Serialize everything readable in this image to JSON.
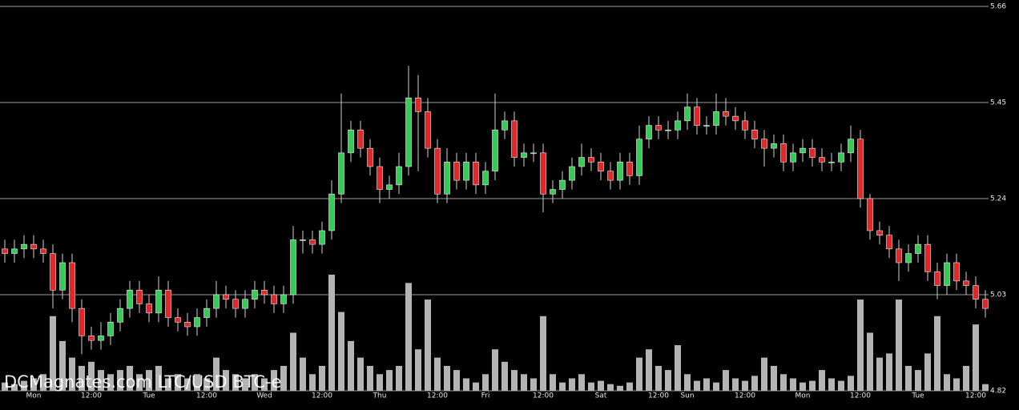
{
  "chart_data": {
    "type": "candlestick",
    "watermark": "DCMagnates.com LTC/USD BTC-e",
    "categories": [
      null,
      null,
      null,
      "Mon",
      null,
      null,
      null,
      null,
      null,
      "12:00",
      null,
      null,
      null,
      null,
      null,
      "Tue",
      null,
      null,
      null,
      null,
      null,
      "12:00",
      null,
      null,
      null,
      null,
      null,
      "Wed",
      null,
      null,
      null,
      null,
      null,
      "12:00",
      null,
      null,
      null,
      null,
      null,
      "Thu",
      null,
      null,
      null,
      null,
      null,
      "12:00",
      null,
      null,
      null,
      null,
      "Fri",
      null,
      null,
      null,
      null,
      null,
      "12:00",
      null,
      null,
      null,
      null,
      null,
      "Sat",
      null,
      null,
      null,
      null,
      null,
      "12:00",
      null,
      null,
      "Sun",
      null,
      null,
      null,
      null,
      null,
      "12:00",
      null,
      null,
      null,
      null,
      null,
      "Mon",
      null,
      null,
      null,
      null,
      null,
      "12:00",
      null,
      null,
      null,
      null,
      null,
      "Tue",
      null,
      null,
      null,
      null,
      null,
      "12:00",
      null
    ],
    "open": [
      5.13,
      5.12,
      5.13,
      5.14,
      5.13,
      5.12,
      5.04,
      5.1,
      5.0,
      4.94,
      4.93,
      4.94,
      4.97,
      5.0,
      5.04,
      5.01,
      4.99,
      5.04,
      4.98,
      4.97,
      4.96,
      4.98,
      5.0,
      5.03,
      5.02,
      5.0,
      5.02,
      5.04,
      5.03,
      5.01,
      5.03,
      5.15,
      5.15,
      5.14,
      5.17,
      5.25,
      5.34,
      5.39,
      5.35,
      5.31,
      5.26,
      5.27,
      5.31,
      5.46,
      5.43,
      5.35,
      5.25,
      5.32,
      5.28,
      5.32,
      5.27,
      5.3,
      5.39,
      5.41,
      5.33,
      5.34,
      5.34,
      5.25,
      5.26,
      5.28,
      5.31,
      5.33,
      5.32,
      5.3,
      5.28,
      5.32,
      5.29,
      5.37,
      5.4,
      5.39,
      5.39,
      5.41,
      5.44,
      5.4,
      5.4,
      5.43,
      5.42,
      5.41,
      5.39,
      5.37,
      5.35,
      5.36,
      5.32,
      5.34,
      5.35,
      5.33,
      5.32,
      5.32,
      5.34,
      5.37,
      5.24,
      5.17,
      5.16,
      5.13,
      5.1,
      5.12,
      5.14,
      5.08,
      5.05,
      5.1,
      5.06,
      5.05,
      5.02
    ],
    "high": [
      5.15,
      5.15,
      5.16,
      5.16,
      5.15,
      5.14,
      5.12,
      5.12,
      5.02,
      4.96,
      4.97,
      4.99,
      5.02,
      5.06,
      5.06,
      5.03,
      5.07,
      5.06,
      5.0,
      4.99,
      5.0,
      5.02,
      5.06,
      5.05,
      5.04,
      5.04,
      5.06,
      5.06,
      5.05,
      5.05,
      5.18,
      5.17,
      5.17,
      5.19,
      5.28,
      5.47,
      5.41,
      5.41,
      5.37,
      5.33,
      5.29,
      5.34,
      5.53,
      5.51,
      5.46,
      5.37,
      5.35,
      5.34,
      5.34,
      5.34,
      5.32,
      5.47,
      5.43,
      5.43,
      5.36,
      5.36,
      5.36,
      5.28,
      5.3,
      5.33,
      5.36,
      5.35,
      5.34,
      5.32,
      5.34,
      5.34,
      5.4,
      5.42,
      5.42,
      5.41,
      5.43,
      5.47,
      5.46,
      5.42,
      5.47,
      5.46,
      5.44,
      5.43,
      5.41,
      5.39,
      5.38,
      5.38,
      5.36,
      5.37,
      5.37,
      5.35,
      5.34,
      5.36,
      5.4,
      5.39,
      5.25,
      5.19,
      5.18,
      5.15,
      5.14,
      5.16,
      5.16,
      5.1,
      5.12,
      5.12,
      5.08,
      5.07,
      5.04
    ],
    "low": [
      5.1,
      5.1,
      5.11,
      5.11,
      5.1,
      5.0,
      5.02,
      4.97,
      4.9,
      4.91,
      4.91,
      4.92,
      4.95,
      4.98,
      4.99,
      4.97,
      4.97,
      4.96,
      4.95,
      4.94,
      4.94,
      4.96,
      4.98,
      5.0,
      4.98,
      4.98,
      5.0,
      5.01,
      4.99,
      4.99,
      5.01,
      5.12,
      5.12,
      5.12,
      5.15,
      5.23,
      5.32,
      5.33,
      5.29,
      5.23,
      5.24,
      5.25,
      5.29,
      5.3,
      5.33,
      5.23,
      5.23,
      5.26,
      5.26,
      5.25,
      5.25,
      5.28,
      5.37,
      5.31,
      5.31,
      5.32,
      5.21,
      5.23,
      5.24,
      5.26,
      5.29,
      5.3,
      5.28,
      5.26,
      5.26,
      5.27,
      5.27,
      5.35,
      5.37,
      5.37,
      5.37,
      5.39,
      5.38,
      5.38,
      5.38,
      5.4,
      5.39,
      5.37,
      5.35,
      5.31,
      5.33,
      5.3,
      5.3,
      5.32,
      5.31,
      5.3,
      5.3,
      5.3,
      5.32,
      5.22,
      5.15,
      5.14,
      5.11,
      5.06,
      5.08,
      5.1,
      5.06,
      5.02,
      5.03,
      5.04,
      5.03,
      5.0,
      4.98
    ],
    "close": [
      5.12,
      5.13,
      5.14,
      5.13,
      5.12,
      5.04,
      5.1,
      5.0,
      4.94,
      4.93,
      4.94,
      4.97,
      5.0,
      5.04,
      5.01,
      4.99,
      5.04,
      4.98,
      4.97,
      4.96,
      4.98,
      5.0,
      5.03,
      5.02,
      5.0,
      5.02,
      5.04,
      5.03,
      5.01,
      5.03,
      5.15,
      5.15,
      5.14,
      5.17,
      5.25,
      5.34,
      5.39,
      5.35,
      5.31,
      5.26,
      5.27,
      5.31,
      5.46,
      5.43,
      5.35,
      5.25,
      5.32,
      5.28,
      5.32,
      5.27,
      5.3,
      5.39,
      5.41,
      5.33,
      5.34,
      5.34,
      5.25,
      5.26,
      5.28,
      5.31,
      5.33,
      5.32,
      5.3,
      5.28,
      5.32,
      5.29,
      5.37,
      5.4,
      5.39,
      5.39,
      5.41,
      5.44,
      5.4,
      5.4,
      5.43,
      5.42,
      5.41,
      5.39,
      5.37,
      5.35,
      5.36,
      5.32,
      5.34,
      5.35,
      5.33,
      5.32,
      5.32,
      5.34,
      5.37,
      5.24,
      5.17,
      5.16,
      5.13,
      5.1,
      5.12,
      5.14,
      5.08,
      5.05,
      5.1,
      5.06,
      5.05,
      5.02,
      5.0
    ],
    "volume": [
      10,
      8,
      12,
      15,
      20,
      90,
      60,
      40,
      30,
      35,
      25,
      20,
      25,
      30,
      20,
      25,
      30,
      15,
      20,
      15,
      20,
      15,
      40,
      25,
      20,
      15,
      20,
      15,
      25,
      30,
      70,
      40,
      20,
      30,
      140,
      95,
      60,
      40,
      30,
      20,
      25,
      30,
      130,
      50,
      110,
      40,
      30,
      25,
      15,
      10,
      20,
      50,
      35,
      25,
      20,
      15,
      90,
      20,
      10,
      15,
      20,
      10,
      12,
      8,
      6,
      10,
      40,
      50,
      30,
      25,
      55,
      20,
      12,
      15,
      10,
      25,
      15,
      12,
      18,
      40,
      30,
      20,
      15,
      10,
      12,
      25,
      15,
      12,
      18,
      110,
      70,
      40,
      45,
      110,
      30,
      25,
      45,
      90,
      20,
      15,
      30,
      80,
      8
    ],
    "up_color": "#33cc55",
    "down_color": "#e02828",
    "wick_color": "#d0d0d0",
    "volume_color": "#b4b4b4",
    "ylim": [
      4.82,
      5.66
    ],
    "yticks": [
      4.82,
      5.03,
      5.24,
      5.45,
      5.66
    ],
    "grid": true
  }
}
